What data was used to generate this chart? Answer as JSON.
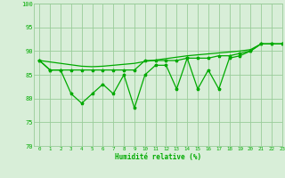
{
  "x": [
    0,
    1,
    2,
    3,
    4,
    5,
    6,
    7,
    8,
    9,
    10,
    11,
    12,
    13,
    14,
    15,
    16,
    17,
    18,
    19,
    20,
    21,
    22,
    23
  ],
  "line_trend": [
    88,
    87.7,
    87.4,
    87.1,
    86.8,
    86.7,
    86.8,
    87.0,
    87.2,
    87.4,
    87.8,
    88.1,
    88.4,
    88.7,
    89.0,
    89.2,
    89.4,
    89.6,
    89.8,
    90.0,
    90.3,
    91.5,
    91.5,
    91.5
  ],
  "line_mid": [
    88,
    86,
    86,
    86,
    86,
    86,
    86,
    86,
    86,
    86,
    88,
    88,
    88,
    88,
    88.5,
    88.5,
    88.5,
    89,
    89,
    89.5,
    90,
    91.5,
    91.5,
    91.5
  ],
  "line_volatile": [
    88,
    86,
    86,
    81,
    79,
    81,
    83,
    81,
    85,
    78,
    85,
    87,
    87,
    82,
    88.5,
    82,
    86,
    82,
    88.5,
    89,
    90,
    91.5,
    91.5,
    91.5
  ],
  "bg_color": "#d8eed8",
  "line_color": "#00aa00",
  "grid_color": "#99cc99",
  "xlabel": "Humidité relative (%)",
  "xlabel_color": "#00aa00",
  "ylim": [
    70,
    100
  ],
  "xlim": [
    -0.5,
    23
  ],
  "yticks": [
    70,
    75,
    80,
    85,
    90,
    95,
    100
  ],
  "xticks": [
    0,
    1,
    2,
    3,
    4,
    5,
    6,
    7,
    8,
    9,
    10,
    11,
    12,
    13,
    14,
    15,
    16,
    17,
    18,
    19,
    20,
    21,
    22,
    23
  ]
}
